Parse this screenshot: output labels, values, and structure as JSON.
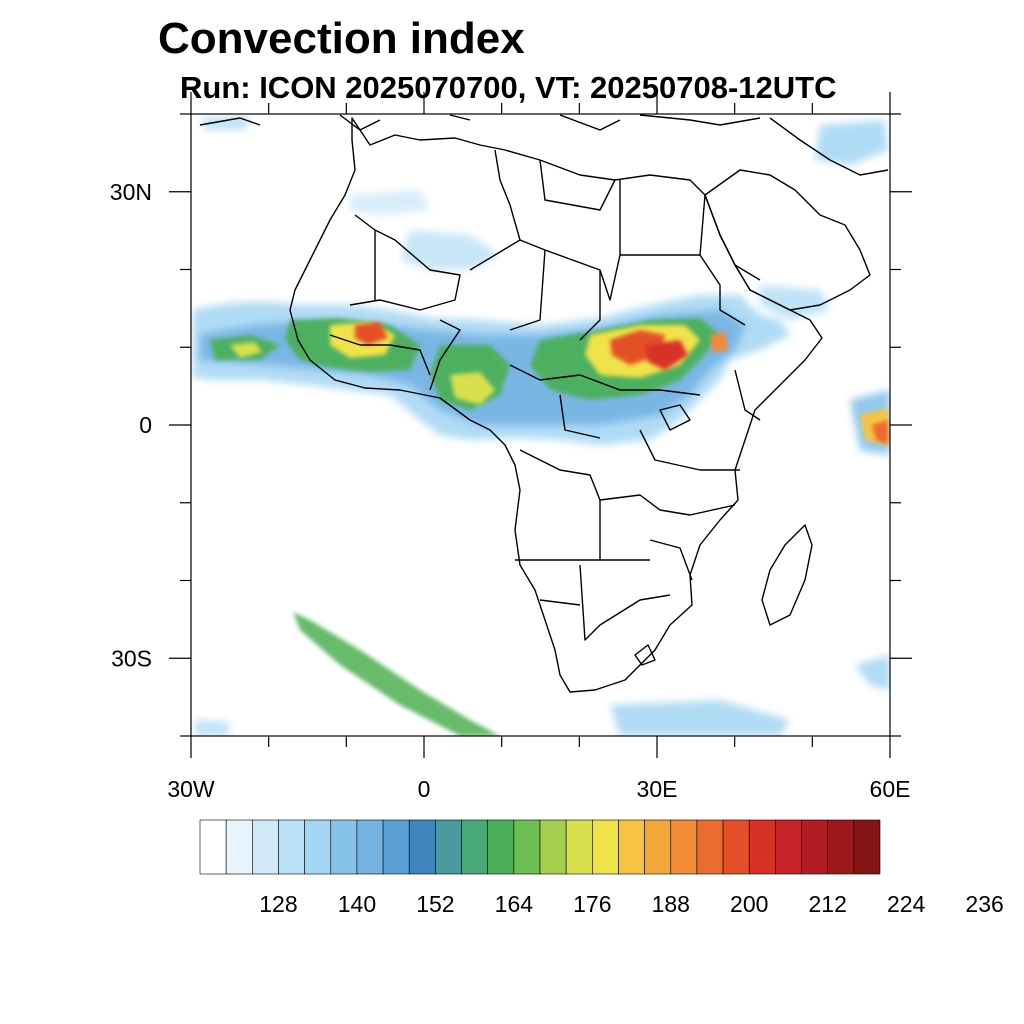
{
  "title": "Convection index",
  "subtitle": "Run: ICON 2025070700,  VT: 20250708-12UTC",
  "map": {
    "lon_range": [
      -30,
      60
    ],
    "lat_range": [
      -40,
      40
    ],
    "lat_labels": [
      {
        "value": 30,
        "text": "30N"
      },
      {
        "value": 0,
        "text": "0"
      },
      {
        "value": -30,
        "text": "30S"
      }
    ],
    "lon_labels": [
      {
        "value": -30,
        "text": "30W"
      },
      {
        "value": 0,
        "text": "0"
      },
      {
        "value": 30,
        "text": "30E"
      },
      {
        "value": 60,
        "text": "60E"
      }
    ]
  },
  "colorbar": {
    "colors": [
      "#ffffff",
      "#e8f4fc",
      "#cfe9f8",
      "#b8e0f6",
      "#a2d6f3",
      "#86c3ea",
      "#74b3e2",
      "#5a9fd4",
      "#3f84bd",
      "#4c9a9e",
      "#48a878",
      "#4cb05a",
      "#6dbd52",
      "#a6ce4e",
      "#d8e04e",
      "#f0e24a",
      "#f6c442",
      "#f3a83c",
      "#f18b36",
      "#ec6b2e",
      "#e44f28",
      "#d83227",
      "#c8232b",
      "#b21c24",
      "#9c1a1e",
      "#861516"
    ],
    "tick_labels": [
      "128",
      "140",
      "152",
      "164",
      "176",
      "188",
      "200",
      "212",
      "224",
      "236"
    ]
  }
}
